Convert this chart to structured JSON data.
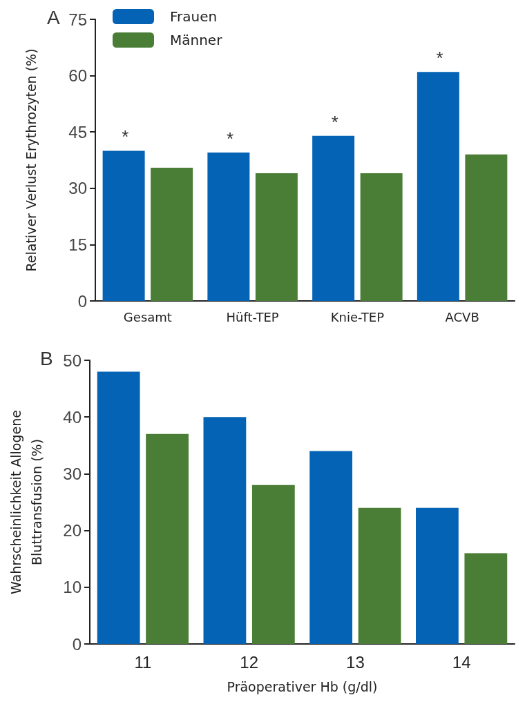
{
  "chart_data": [
    {
      "type": "bar",
      "title": "A",
      "ylabel": "Relativer Verlust Erythrozyten (%)",
      "categories": [
        "Gesamt",
        "Hüft-TEP",
        "Knie-TEP",
        "ACVB"
      ],
      "series": [
        {
          "name": "Frauen",
          "color": "#0563b5",
          "values": [
            40,
            39.5,
            44,
            61
          ]
        },
        {
          "name": "Männer",
          "color": "#4a7d35",
          "values": [
            35.5,
            34,
            34,
            39
          ]
        }
      ],
      "ylim": [
        0,
        75
      ],
      "yticks": [
        0,
        15,
        30,
        45,
        60,
        75
      ],
      "grid": false,
      "legend": "top left",
      "annotations": [
        {
          "text": "*",
          "x": "Gesamt",
          "y": 40
        },
        {
          "text": "*",
          "x": "Hüft-TEP",
          "y": 39.5
        },
        {
          "text": "*",
          "x": "Knie-TEP",
          "y": 44
        },
        {
          "text": "*",
          "x": "ACVB",
          "y": 61
        }
      ]
    },
    {
      "type": "bar",
      "title": "B",
      "xlabel": "Präoperativer Hb (g/dl)",
      "ylabel": "Wahrscheinlichkeit Allogene\nBluttransfusion (%)",
      "categories": [
        "11",
        "12",
        "13",
        "14"
      ],
      "series": [
        {
          "color": "#0563b5",
          "values": [
            48,
            40,
            34,
            24
          ]
        },
        {
          "color": "#4a7d35",
          "values": [
            37,
            28,
            24,
            16
          ]
        }
      ],
      "ylim": [
        0,
        50
      ],
      "yticks": [
        0,
        10,
        20,
        30,
        40,
        50
      ],
      "grid": false,
      "legend": false
    }
  ]
}
